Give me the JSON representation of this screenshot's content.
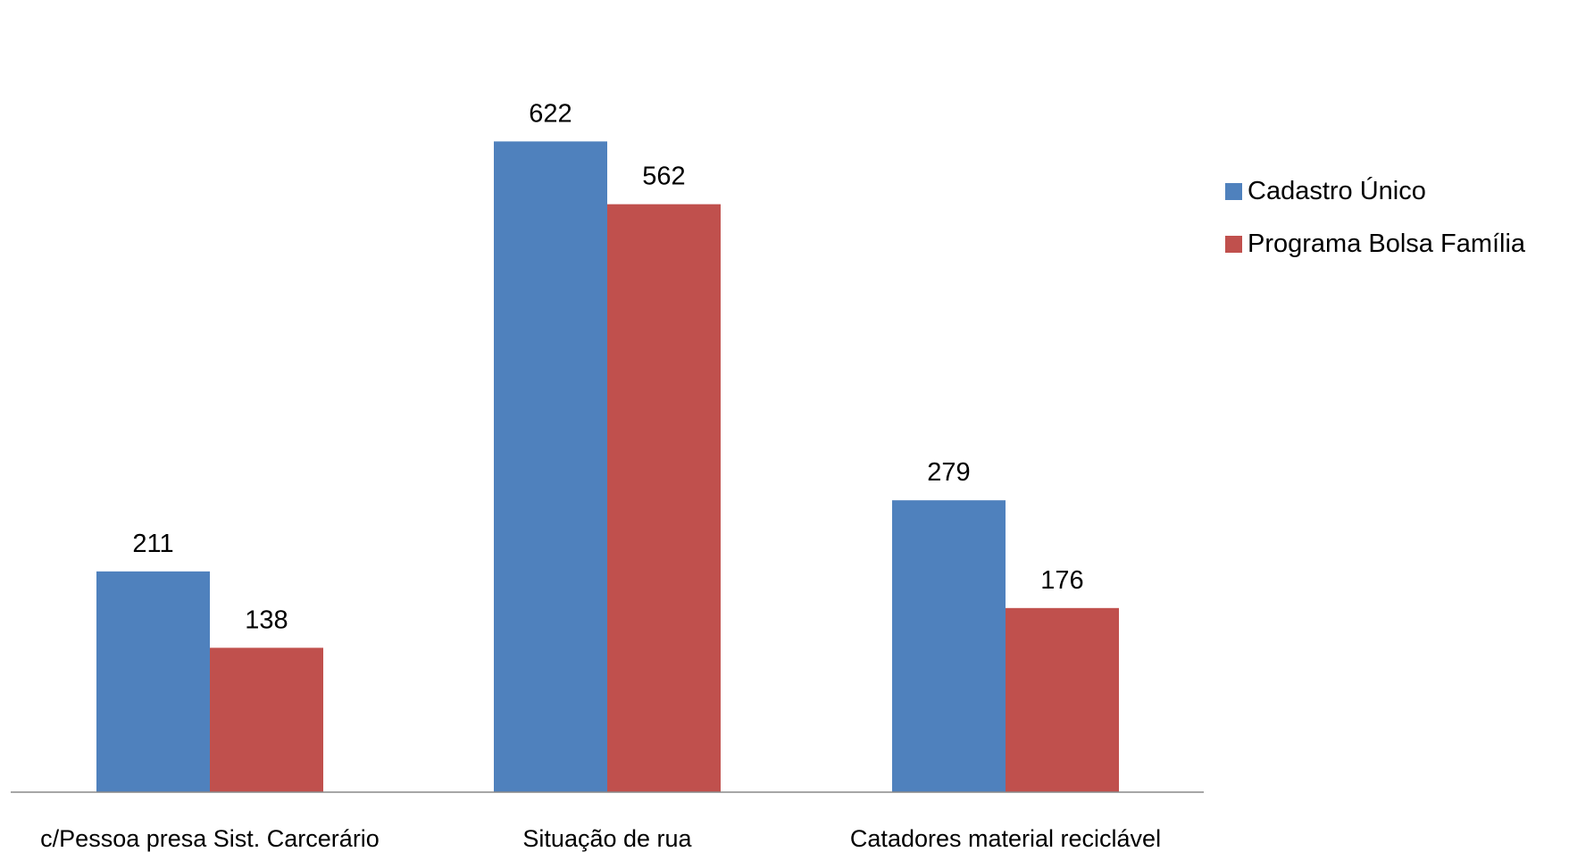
{
  "chart_data": {
    "type": "bar",
    "title": "",
    "xlabel": "",
    "ylabel": "",
    "categories": [
      "c/Pessoa presa Sist. Carcerário",
      "Situação de rua",
      "Catadores material reciclável"
    ],
    "series": [
      {
        "name": "Cadastro Único",
        "values": [
          211,
          622,
          279
        ],
        "color": "#4F81BD"
      },
      {
        "name": "Programa Bolsa Família",
        "values": [
          138,
          562,
          176
        ],
        "color": "#C0504D"
      }
    ],
    "ylim": [
      0,
      700
    ],
    "grid": false,
    "data_labels": true,
    "legend": {
      "position": "right"
    }
  }
}
